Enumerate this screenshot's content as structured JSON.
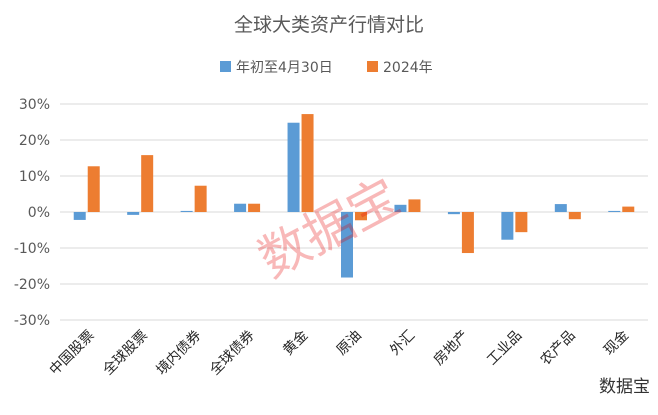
{
  "chart_data": {
    "type": "bar",
    "title": "全球大类资产行情对比",
    "categories": [
      "中国股票",
      "全球股票",
      "境内债券",
      "全球债券",
      "黄金",
      "原油",
      "外汇",
      "房地产",
      "工业品",
      "农产品",
      "现金"
    ],
    "series": [
      {
        "name": "年初至4月30日",
        "color": "#5b9bd5",
        "values": [
          -2.2,
          -0.8,
          0.3,
          2.3,
          24.8,
          -18.2,
          2.0,
          -0.6,
          -7.7,
          2.2,
          0.3
        ]
      },
      {
        "name": "2024年",
        "color": "#ed7d31",
        "values": [
          12.7,
          15.8,
          7.3,
          2.3,
          27.2,
          -2.3,
          3.5,
          -11.4,
          -5.6,
          -2.0,
          1.5
        ]
      }
    ],
    "ylim": [
      -30,
      30
    ],
    "yticks": [
      "30%",
      "20%",
      "10%",
      "0%",
      "-10%",
      "-20%",
      "-30%"
    ],
    "grid": true,
    "legend_position": "top"
  },
  "watermark": {
    "center_text": "数据宝",
    "corner_text": "数据宝"
  }
}
